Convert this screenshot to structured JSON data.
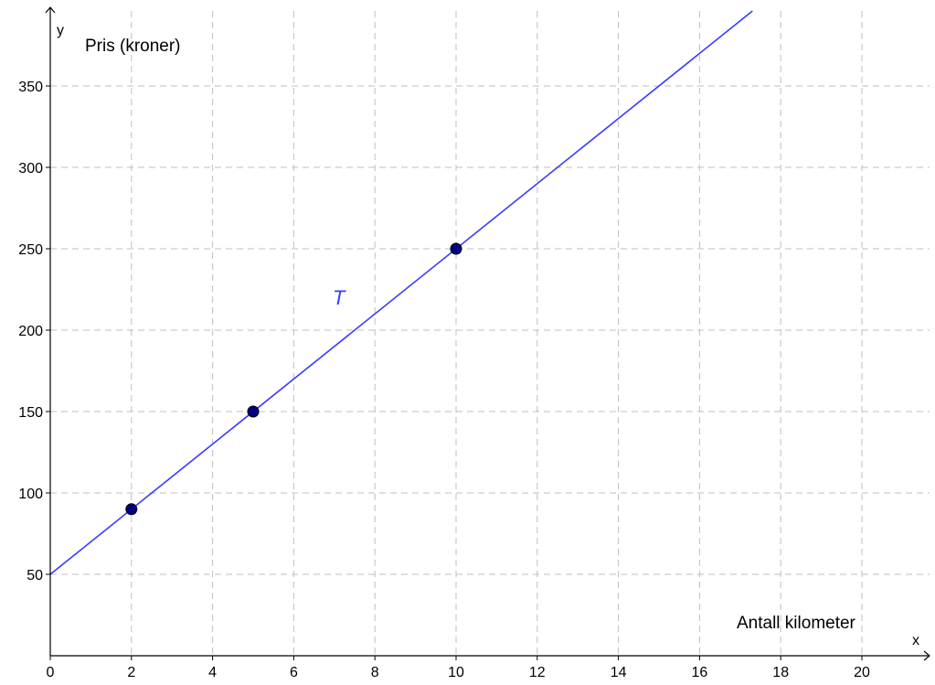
{
  "chart_data": {
    "type": "line",
    "x_axis_letter": "x",
    "y_axis_letter": "y",
    "xlabel": "Antall kilometer",
    "ylabel": "Pris (kroner)",
    "xlim": [
      0,
      22
    ],
    "ylim": [
      0,
      400
    ],
    "x_ticks": [
      0,
      2,
      4,
      6,
      8,
      10,
      12,
      14,
      16,
      18,
      20
    ],
    "y_ticks": [
      50,
      100,
      150,
      200,
      250,
      300,
      350
    ],
    "grid": true,
    "series": [
      {
        "name": "T",
        "style": "line",
        "color": "#3a3aff",
        "slope": 20,
        "intercept": 50
      },
      {
        "style": "points",
        "color": "#000080",
        "x": [
          2,
          5,
          10
        ],
        "y": [
          90,
          150,
          250
        ]
      }
    ]
  }
}
